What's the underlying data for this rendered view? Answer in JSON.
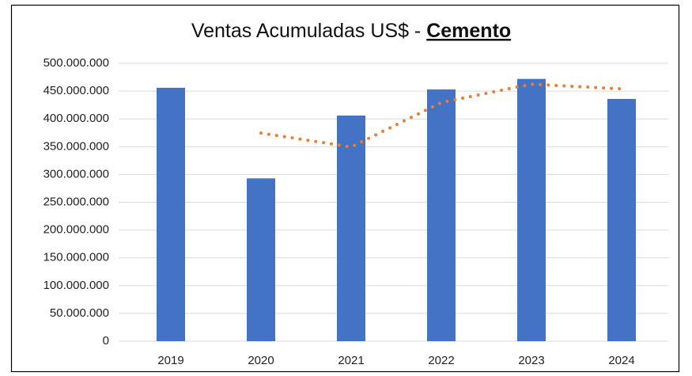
{
  "chart_data": {
    "type": "bar",
    "title": [
      "Ventas Acumuladas US$ -",
      "Cemento"
    ],
    "categories": [
      "2019",
      "2020",
      "2021",
      "2022",
      "2023",
      "2024"
    ],
    "series": [
      {
        "type": "bar",
        "color": "#4472c4",
        "values": [
          456000000,
          293000000,
          406000000,
          453000000,
          472000000,
          436000000
        ]
      },
      {
        "type": "line",
        "style": "dotted",
        "color": "#ed7d31",
        "values": [
          null,
          374500000,
          349500000,
          429500000,
          462500000,
          454000000
        ]
      }
    ],
    "ylim": [
      0,
      500000000
    ],
    "yticks": [
      0,
      {
        "value": 50000000,
        "label": "50.000.000"
      },
      {
        "value": 100000000,
        "label": "100.000.000"
      },
      {
        "value": 150000000,
        "label": "150.000.000"
      },
      {
        "value": 200000000,
        "label": "200.000.000"
      },
      {
        "value": 250000000,
        "label": "250.000.000"
      },
      {
        "value": 300000000,
        "label": "300.000.000"
      },
      {
        "value": 350000000,
        "label": "350.000.000"
      },
      {
        "value": 400000000,
        "label": "400.000.000"
      },
      {
        "value": 450000000,
        "label": "450.000.000"
      },
      {
        "value": 500000000,
        "label": "500.000.000"
      }
    ],
    "grid": true
  }
}
